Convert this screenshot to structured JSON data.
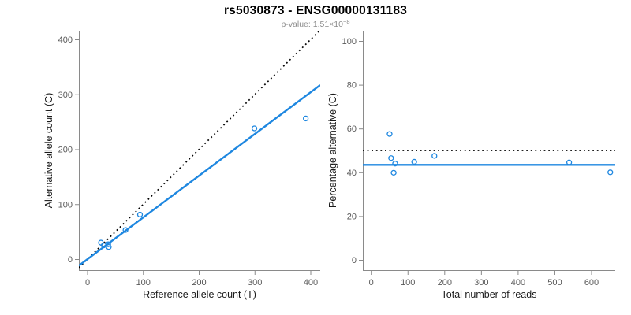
{
  "header": {
    "title": "rs5030873 - ENSG00000131183",
    "p_label": "p-value: ",
    "p_mantissa": "1.51",
    "p_times": "×10",
    "p_exponent": "−8"
  },
  "colors": {
    "accent_blue": "#1e87e0",
    "dotted_black": "#000000",
    "axis_line": "#8a8a8a",
    "tick_text": "#595959",
    "axis_title_text": "#1a1a1a",
    "subtitle_text": "#8c8c8c"
  },
  "chart_data": [
    {
      "type": "scatter",
      "panel": "left",
      "xlabel": "Reference allele count (T)",
      "ylabel": "Alternative allele count (C)",
      "xlim": [
        0,
        400
      ],
      "ylim": [
        0,
        400
      ],
      "xticks": [
        0,
        100,
        200,
        300,
        400
      ],
      "yticks": [
        0,
        100,
        200,
        300,
        400
      ],
      "grid": false,
      "points": [
        [
          24,
          30
        ],
        [
          29,
          25
        ],
        [
          37,
          27
        ],
        [
          38,
          22
        ],
        [
          68,
          53
        ],
        [
          94,
          81
        ],
        [
          299,
          238
        ],
        [
          391,
          256
        ]
      ],
      "lines": [
        {
          "name": "identity-line",
          "style": "dotted",
          "color": "#000000",
          "slope": 1,
          "intercept": 0
        },
        {
          "name": "fit-line",
          "style": "solid",
          "color": "#1e87e0",
          "slope": 0.76,
          "intercept": 0
        }
      ]
    },
    {
      "type": "scatter",
      "panel": "right",
      "xlabel": "Total number of reads",
      "ylabel": "Percentage alternative (C)",
      "xlim": [
        0,
        650
      ],
      "ylim": [
        0,
        100
      ],
      "xticks": [
        0,
        100,
        200,
        300,
        400,
        500,
        600
      ],
      "yticks": [
        0,
        20,
        40,
        60,
        80,
        100
      ],
      "grid": false,
      "points": [
        [
          50,
          57.5
        ],
        [
          54,
          46.5
        ],
        [
          61,
          39.8
        ],
        [
          65,
          44
        ],
        [
          117,
          44.8
        ],
        [
          172,
          47.5
        ],
        [
          539,
          44.5
        ],
        [
          651,
          40
        ]
      ],
      "lines": [
        {
          "name": "fifty-percent-line",
          "style": "dotted",
          "color": "#000000",
          "hline": 50
        },
        {
          "name": "mean-percentage-line",
          "style": "solid",
          "color": "#1e87e0",
          "hline": 43.4
        }
      ]
    }
  ]
}
